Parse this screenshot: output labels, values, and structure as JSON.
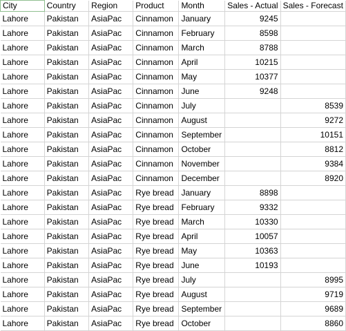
{
  "headers": [
    "City",
    "Country",
    "Region",
    "Product",
    "Month",
    "Sales - Actual",
    "Sales - Forecast"
  ],
  "rows": [
    [
      "Lahore",
      "Pakistan",
      "AsiaPac",
      "Cinnamon",
      "January",
      "9245",
      ""
    ],
    [
      "Lahore",
      "Pakistan",
      "AsiaPac",
      "Cinnamon",
      "February",
      "8598",
      ""
    ],
    [
      "Lahore",
      "Pakistan",
      "AsiaPac",
      "Cinnamon",
      "March",
      "8788",
      ""
    ],
    [
      "Lahore",
      "Pakistan",
      "AsiaPac",
      "Cinnamon",
      "April",
      "10215",
      ""
    ],
    [
      "Lahore",
      "Pakistan",
      "AsiaPac",
      "Cinnamon",
      "May",
      "10377",
      ""
    ],
    [
      "Lahore",
      "Pakistan",
      "AsiaPac",
      "Cinnamon",
      "June",
      "9248",
      ""
    ],
    [
      "Lahore",
      "Pakistan",
      "AsiaPac",
      "Cinnamon",
      "July",
      "",
      "8539"
    ],
    [
      "Lahore",
      "Pakistan",
      "AsiaPac",
      "Cinnamon",
      "August",
      "",
      "9272"
    ],
    [
      "Lahore",
      "Pakistan",
      "AsiaPac",
      "Cinnamon",
      "September",
      "",
      "10151"
    ],
    [
      "Lahore",
      "Pakistan",
      "AsiaPac",
      "Cinnamon",
      "October",
      "",
      "8812"
    ],
    [
      "Lahore",
      "Pakistan",
      "AsiaPac",
      "Cinnamon",
      "November",
      "",
      "9384"
    ],
    [
      "Lahore",
      "Pakistan",
      "AsiaPac",
      "Cinnamon",
      "December",
      "",
      "8920"
    ],
    [
      "Lahore",
      "Pakistan",
      "AsiaPac",
      "Rye bread",
      "January",
      "8898",
      ""
    ],
    [
      "Lahore",
      "Pakistan",
      "AsiaPac",
      "Rye bread",
      "February",
      "9332",
      ""
    ],
    [
      "Lahore",
      "Pakistan",
      "AsiaPac",
      "Rye bread",
      "March",
      "10330",
      ""
    ],
    [
      "Lahore",
      "Pakistan",
      "AsiaPac",
      "Rye bread",
      "April",
      "10057",
      ""
    ],
    [
      "Lahore",
      "Pakistan",
      "AsiaPac",
      "Rye bread",
      "May",
      "10363",
      ""
    ],
    [
      "Lahore",
      "Pakistan",
      "AsiaPac",
      "Rye bread",
      "June",
      "10193",
      ""
    ],
    [
      "Lahore",
      "Pakistan",
      "AsiaPac",
      "Rye bread",
      "July",
      "",
      "8995"
    ],
    [
      "Lahore",
      "Pakistan",
      "AsiaPac",
      "Rye bread",
      "August",
      "",
      "9719"
    ],
    [
      "Lahore",
      "Pakistan",
      "AsiaPac",
      "Rye bread",
      "September",
      "",
      "9689"
    ],
    [
      "Lahore",
      "Pakistan",
      "AsiaPac",
      "Rye bread",
      "October",
      "",
      "8860"
    ]
  ]
}
